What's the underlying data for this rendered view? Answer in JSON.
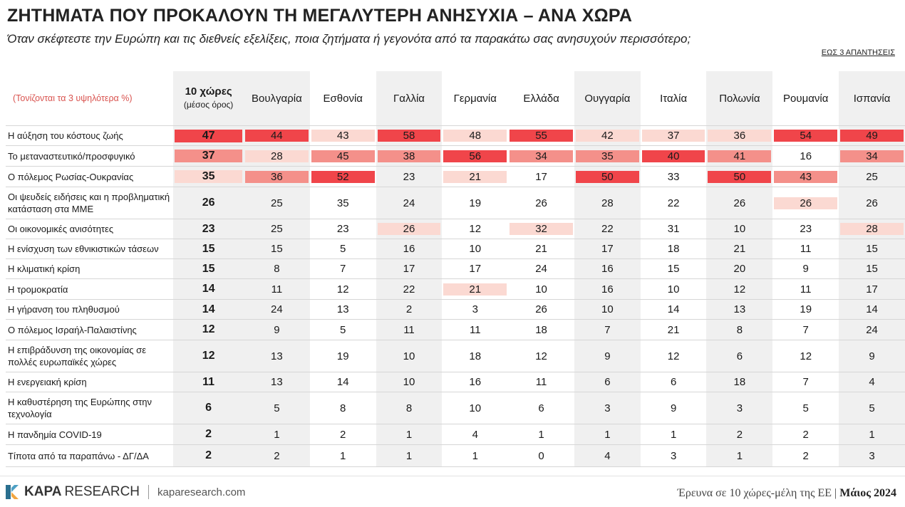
{
  "title": "ΖΗΤΗΜΑΤΑ ΠΟΥ ΠΡΟΚΑΛΟΥΝ ΤΗ ΜΕΓΑΛΥΤΕΡΗ ΑΝΗΣΥΧΙΑ – ΑΝΑ ΧΩΡΑ",
  "subtitle": "Όταν σκέφτεστε την Ευρώπη και τις διεθνείς εξελίξεις, ποια ζητήματα ή γεγονότα από τα παρακάτω σας ανησυχούν περισσότερο;",
  "note": "ΕΩΣ 3 ΑΠΑΝΤΗΣΕΙΣ",
  "highlight_note": "(Τονίζονται τα 3 υψηλότερα %)",
  "avg_header": "10 χώρες",
  "avg_header_sub": "(μέσος όρος)",
  "colors": {
    "rank1": "#f0454a",
    "rank2": "#f4908a",
    "rank3": "#fbd9d2",
    "shade": "#f0f0f0"
  },
  "chart_data": {
    "type": "table",
    "columns": [
      "Βουλγαρία",
      "Εσθονία",
      "Γαλλία",
      "Γερμανία",
      "Ελλάδα",
      "Ουγγαρία",
      "Ιταλία",
      "Πολωνία",
      "Ρουμανία",
      "Ισπανία"
    ],
    "rows": [
      {
        "label": "Η αύξηση του κόστους ζωής",
        "avg": 47,
        "values": [
          44,
          43,
          58,
          48,
          55,
          42,
          37,
          36,
          54,
          49
        ],
        "ranks": [
          1,
          3,
          1,
          3,
          1,
          3,
          3,
          3,
          1,
          1
        ],
        "avg_rank": 1
      },
      {
        "label": "Το μεταναστευτικό/προσφυγικό",
        "avg": 37,
        "values": [
          28,
          45,
          38,
          56,
          34,
          35,
          40,
          41,
          16,
          34
        ],
        "ranks": [
          3,
          2,
          2,
          1,
          2,
          2,
          1,
          2,
          0,
          2
        ],
        "avg_rank": 2
      },
      {
        "label": "Ο πόλεμος Ρωσίας-Ουκρανίας",
        "avg": 35,
        "values": [
          36,
          52,
          23,
          21,
          17,
          50,
          33,
          50,
          43,
          25
        ],
        "ranks": [
          2,
          1,
          0,
          3,
          0,
          1,
          0,
          1,
          2,
          0
        ],
        "avg_rank": 3
      },
      {
        "label": "Οι ψευδείς ειδήσεις και η προβληματική κατάσταση στα ΜΜΕ",
        "avg": 26,
        "values": [
          25,
          35,
          24,
          19,
          26,
          28,
          22,
          26,
          26,
          26
        ],
        "ranks": [
          0,
          0,
          0,
          0,
          0,
          0,
          0,
          0,
          3,
          0
        ],
        "avg_rank": 0
      },
      {
        "label": "Οι οικονομικές ανισότητες",
        "avg": 23,
        "values": [
          25,
          23,
          26,
          12,
          32,
          22,
          31,
          10,
          23,
          28
        ],
        "ranks": [
          0,
          0,
          3,
          0,
          3,
          0,
          0,
          0,
          0,
          3
        ],
        "avg_rank": 0
      },
      {
        "label": "Η ενίσχυση των εθνικιστικών τάσεων",
        "avg": 15,
        "values": [
          15,
          5,
          16,
          10,
          21,
          17,
          18,
          21,
          11,
          15
        ],
        "ranks": [
          0,
          0,
          0,
          0,
          0,
          0,
          0,
          0,
          0,
          0
        ],
        "avg_rank": 0
      },
      {
        "label": "Η κλιματική κρίση",
        "avg": 15,
        "values": [
          8,
          7,
          17,
          17,
          24,
          16,
          15,
          20,
          9,
          15
        ],
        "ranks": [
          0,
          0,
          0,
          0,
          0,
          0,
          0,
          0,
          0,
          0
        ],
        "avg_rank": 0
      },
      {
        "label": "Η τρομοκρατία",
        "avg": 14,
        "values": [
          11,
          12,
          22,
          21,
          10,
          16,
          10,
          12,
          11,
          17
        ],
        "ranks": [
          0,
          0,
          0,
          3,
          0,
          0,
          0,
          0,
          0,
          0
        ],
        "avg_rank": 0
      },
      {
        "label": "Η γήρανση του πληθυσμού",
        "avg": 14,
        "values": [
          24,
          13,
          2,
          3,
          26,
          10,
          14,
          13,
          19,
          14
        ],
        "ranks": [
          0,
          0,
          0,
          0,
          0,
          0,
          0,
          0,
          0,
          0
        ],
        "avg_rank": 0
      },
      {
        "label": "Ο πόλεμος Ισραήλ-Παλαιστίνης",
        "avg": 12,
        "values": [
          9,
          5,
          11,
          11,
          18,
          7,
          21,
          8,
          7,
          24
        ],
        "ranks": [
          0,
          0,
          0,
          0,
          0,
          0,
          0,
          0,
          0,
          0
        ],
        "avg_rank": 0
      },
      {
        "label": "Η επιβράδυνση της οικονομίας σε πολλές ευρωπαϊκές χώρες",
        "avg": 12,
        "values": [
          13,
          19,
          10,
          18,
          12,
          9,
          12,
          6,
          12,
          9
        ],
        "ranks": [
          0,
          0,
          0,
          0,
          0,
          0,
          0,
          0,
          0,
          0
        ],
        "avg_rank": 0
      },
      {
        "label": "Η ενεργειακή κρίση",
        "avg": 11,
        "values": [
          13,
          14,
          10,
          16,
          11,
          6,
          6,
          18,
          7,
          4
        ],
        "ranks": [
          0,
          0,
          0,
          0,
          0,
          0,
          0,
          0,
          0,
          0
        ],
        "avg_rank": 0
      },
      {
        "label": "Η καθυστέρηση της Ευρώπης στην τεχνολογία",
        "avg": 6,
        "values": [
          5,
          8,
          8,
          10,
          6,
          3,
          9,
          3,
          5,
          5
        ],
        "ranks": [
          0,
          0,
          0,
          0,
          0,
          0,
          0,
          0,
          0,
          0
        ],
        "avg_rank": 0
      },
      {
        "label": "Η πανδημία COVID-19",
        "avg": 2,
        "values": [
          1,
          2,
          1,
          4,
          1,
          1,
          1,
          2,
          2,
          1
        ],
        "ranks": [
          0,
          0,
          0,
          0,
          0,
          0,
          0,
          0,
          0,
          0
        ],
        "avg_rank": 0
      },
      {
        "label": "Τίποτα από τα παραπάνω - ΔΓ/ΔΑ",
        "avg": 2,
        "values": [
          2,
          1,
          1,
          1,
          0,
          4,
          3,
          1,
          2,
          3
        ],
        "ranks": [
          0,
          0,
          0,
          0,
          0,
          0,
          0,
          0,
          0,
          0
        ],
        "avg_rank": 0
      }
    ]
  },
  "footer": {
    "brand_bold": "KAPA",
    "brand_regular": "RESEARCH",
    "site": "kaparesearch.com",
    "source_text": "Έρευνα σε 10 χώρες-μέλη της ΕΕ",
    "source_sep": "|",
    "source_date": "Μάιος 2024"
  }
}
